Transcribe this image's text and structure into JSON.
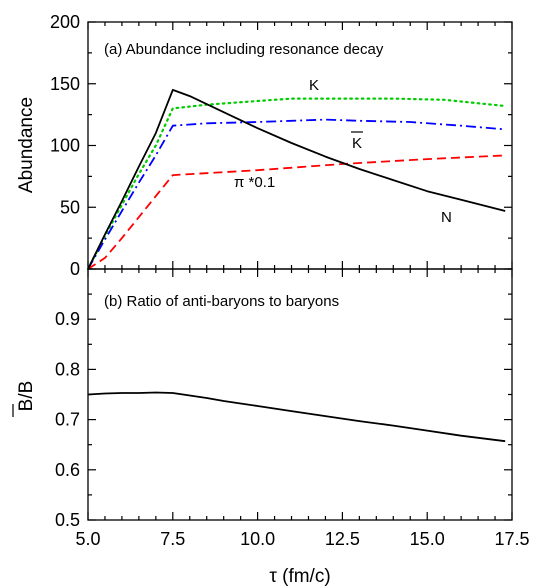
{
  "chart_data": [
    {
      "type": "line",
      "title": "(a) Abundance including resonance decay",
      "ylabel": "Abundance",
      "xlabel": "",
      "xlim": [
        5.0,
        17.5
      ],
      "ylim": [
        0,
        200
      ],
      "x_ticks": [
        "5.0",
        "7.5",
        "10.0",
        "12.5",
        "15.0",
        "17.5"
      ],
      "y_ticks": [
        "0",
        "50",
        "100",
        "150",
        "200"
      ],
      "grid": false,
      "series": [
        {
          "name": "K",
          "color": "#00cc00",
          "style": "dotted",
          "x": [
            5.0,
            5.5,
            6.0,
            6.5,
            7.0,
            7.5,
            8.5,
            10.0,
            11.0,
            12.5,
            14.0,
            15.5,
            17.3
          ],
          "y": [
            0,
            27,
            52,
            77,
            100,
            130,
            133,
            136,
            138,
            138,
            138,
            137,
            132
          ]
        },
        {
          "name": "K̄",
          "color": "#0000ff",
          "style": "dashdot",
          "x": [
            5.0,
            5.5,
            6.0,
            6.5,
            7.0,
            7.5,
            8.5,
            10.0,
            11.0,
            12.0,
            13.0,
            14.5,
            16.0,
            17.3
          ],
          "y": [
            0,
            24,
            47,
            70,
            92,
            116,
            118,
            119,
            120,
            121,
            120,
            119,
            116,
            113
          ]
        },
        {
          "name": "π *0.1",
          "color": "#ff0000",
          "style": "dashed",
          "x": [
            5.0,
            5.5,
            6.0,
            6.5,
            7.0,
            7.5,
            10.0,
            12.5,
            15.0,
            17.3
          ],
          "y": [
            0,
            9,
            25,
            42,
            59,
            76,
            80,
            85,
            89,
            92
          ]
        },
        {
          "name": "N",
          "color": "#000000",
          "style": "solid",
          "x": [
            5.0,
            5.5,
            6.0,
            6.5,
            7.0,
            7.5,
            8.0,
            9.0,
            10.0,
            11.0,
            12.0,
            13.0,
            14.0,
            15.0,
            16.0,
            17.3
          ],
          "y": [
            0,
            28,
            55,
            83,
            110,
            145,
            140,
            127,
            114,
            102,
            91,
            81,
            72,
            63,
            56,
            47
          ]
        }
      ],
      "annotations": [
        "K",
        "K",
        "π *0.1",
        "N"
      ]
    },
    {
      "type": "line",
      "title": "(b) Ratio of anti-baryons to baryons",
      "ylabel": "B/B",
      "ylabel_overline_part": "B",
      "ylabel_rest": "/B",
      "xlabel": "τ (fm/c)",
      "xlim": [
        5.0,
        17.5
      ],
      "ylim": [
        0.5,
        1.0
      ],
      "x_ticks": [
        "5.0",
        "7.5",
        "10.0",
        "12.5",
        "15.0",
        "17.5"
      ],
      "y_ticks": [
        "0.5",
        "0.6",
        "0.7",
        "0.8",
        "0.9"
      ],
      "grid": false,
      "series": [
        {
          "color": "#000000",
          "style": "solid",
          "x": [
            5.0,
            5.5,
            6.0,
            6.5,
            7.0,
            7.5,
            8.0,
            8.5,
            9.0,
            10.0,
            11.0,
            12.0,
            13.0,
            14.0,
            15.0,
            16.0,
            17.3
          ],
          "y": [
            0.75,
            0.752,
            0.753,
            0.753,
            0.754,
            0.753,
            0.748,
            0.743,
            0.737,
            0.727,
            0.717,
            0.707,
            0.697,
            0.688,
            0.678,
            0.668,
            0.657
          ]
        }
      ]
    }
  ]
}
